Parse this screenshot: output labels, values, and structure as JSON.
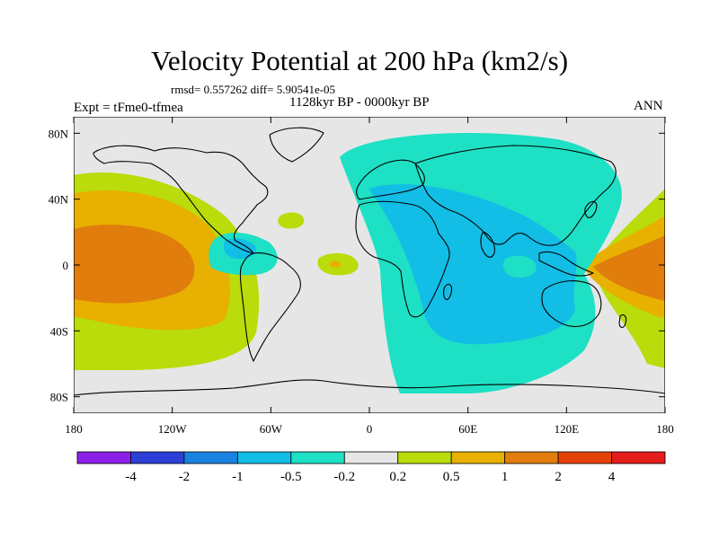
{
  "title": "Velocity Potential at 200 hPa (km2/s)",
  "stats": "rmsd= 0.557262 diff= 5.90541e-05",
  "period": "1128kyr BP - 0000kyr BP",
  "experiment": "Expt = tFme0-tfmea",
  "season": "ANN",
  "map": {
    "projection": "cylindrical-equidistant",
    "lon_range": [
      -180,
      180
    ],
    "lat_range": [
      -90,
      90
    ],
    "x_ticks": [
      {
        "lon": -180,
        "label": "180"
      },
      {
        "lon": -120,
        "label": "120W"
      },
      {
        "lon": -60,
        "label": "60W"
      },
      {
        "lon": 0,
        "label": "0"
      },
      {
        "lon": 60,
        "label": "60E"
      },
      {
        "lon": 120,
        "label": "120E"
      },
      {
        "lon": 180,
        "label": "180"
      }
    ],
    "y_ticks": [
      {
        "lat": 80,
        "label": "80N"
      },
      {
        "lat": 40,
        "label": "40N"
      },
      {
        "lat": 0,
        "label": "0"
      },
      {
        "lat": -40,
        "label": "40S"
      },
      {
        "lat": -80,
        "label": "80S"
      }
    ]
  },
  "colorbar": {
    "levels": [
      "-4",
      "-2",
      "-1",
      "-0.5",
      "-0.2",
      "0.2",
      "0.5",
      "1",
      "2",
      "4"
    ],
    "colors": [
      "#8c20e8",
      "#2c3fd6",
      "#1a82e0",
      "#12bde6",
      "#1ee0c4",
      "#e6e6e6",
      "#b9dc0a",
      "#e8b000",
      "#e07d0c",
      "#e5420a",
      "#e51d1a"
    ]
  },
  "palette": {
    "background": "#e6e6e6",
    "neg_weak": "#1ee0c4",
    "neg_mid": "#12bde6",
    "pos_weak": "#b9dc0a",
    "pos_mid": "#e8b000",
    "pos_strong": "#e07d0c",
    "pos_max": "#e5420a"
  }
}
